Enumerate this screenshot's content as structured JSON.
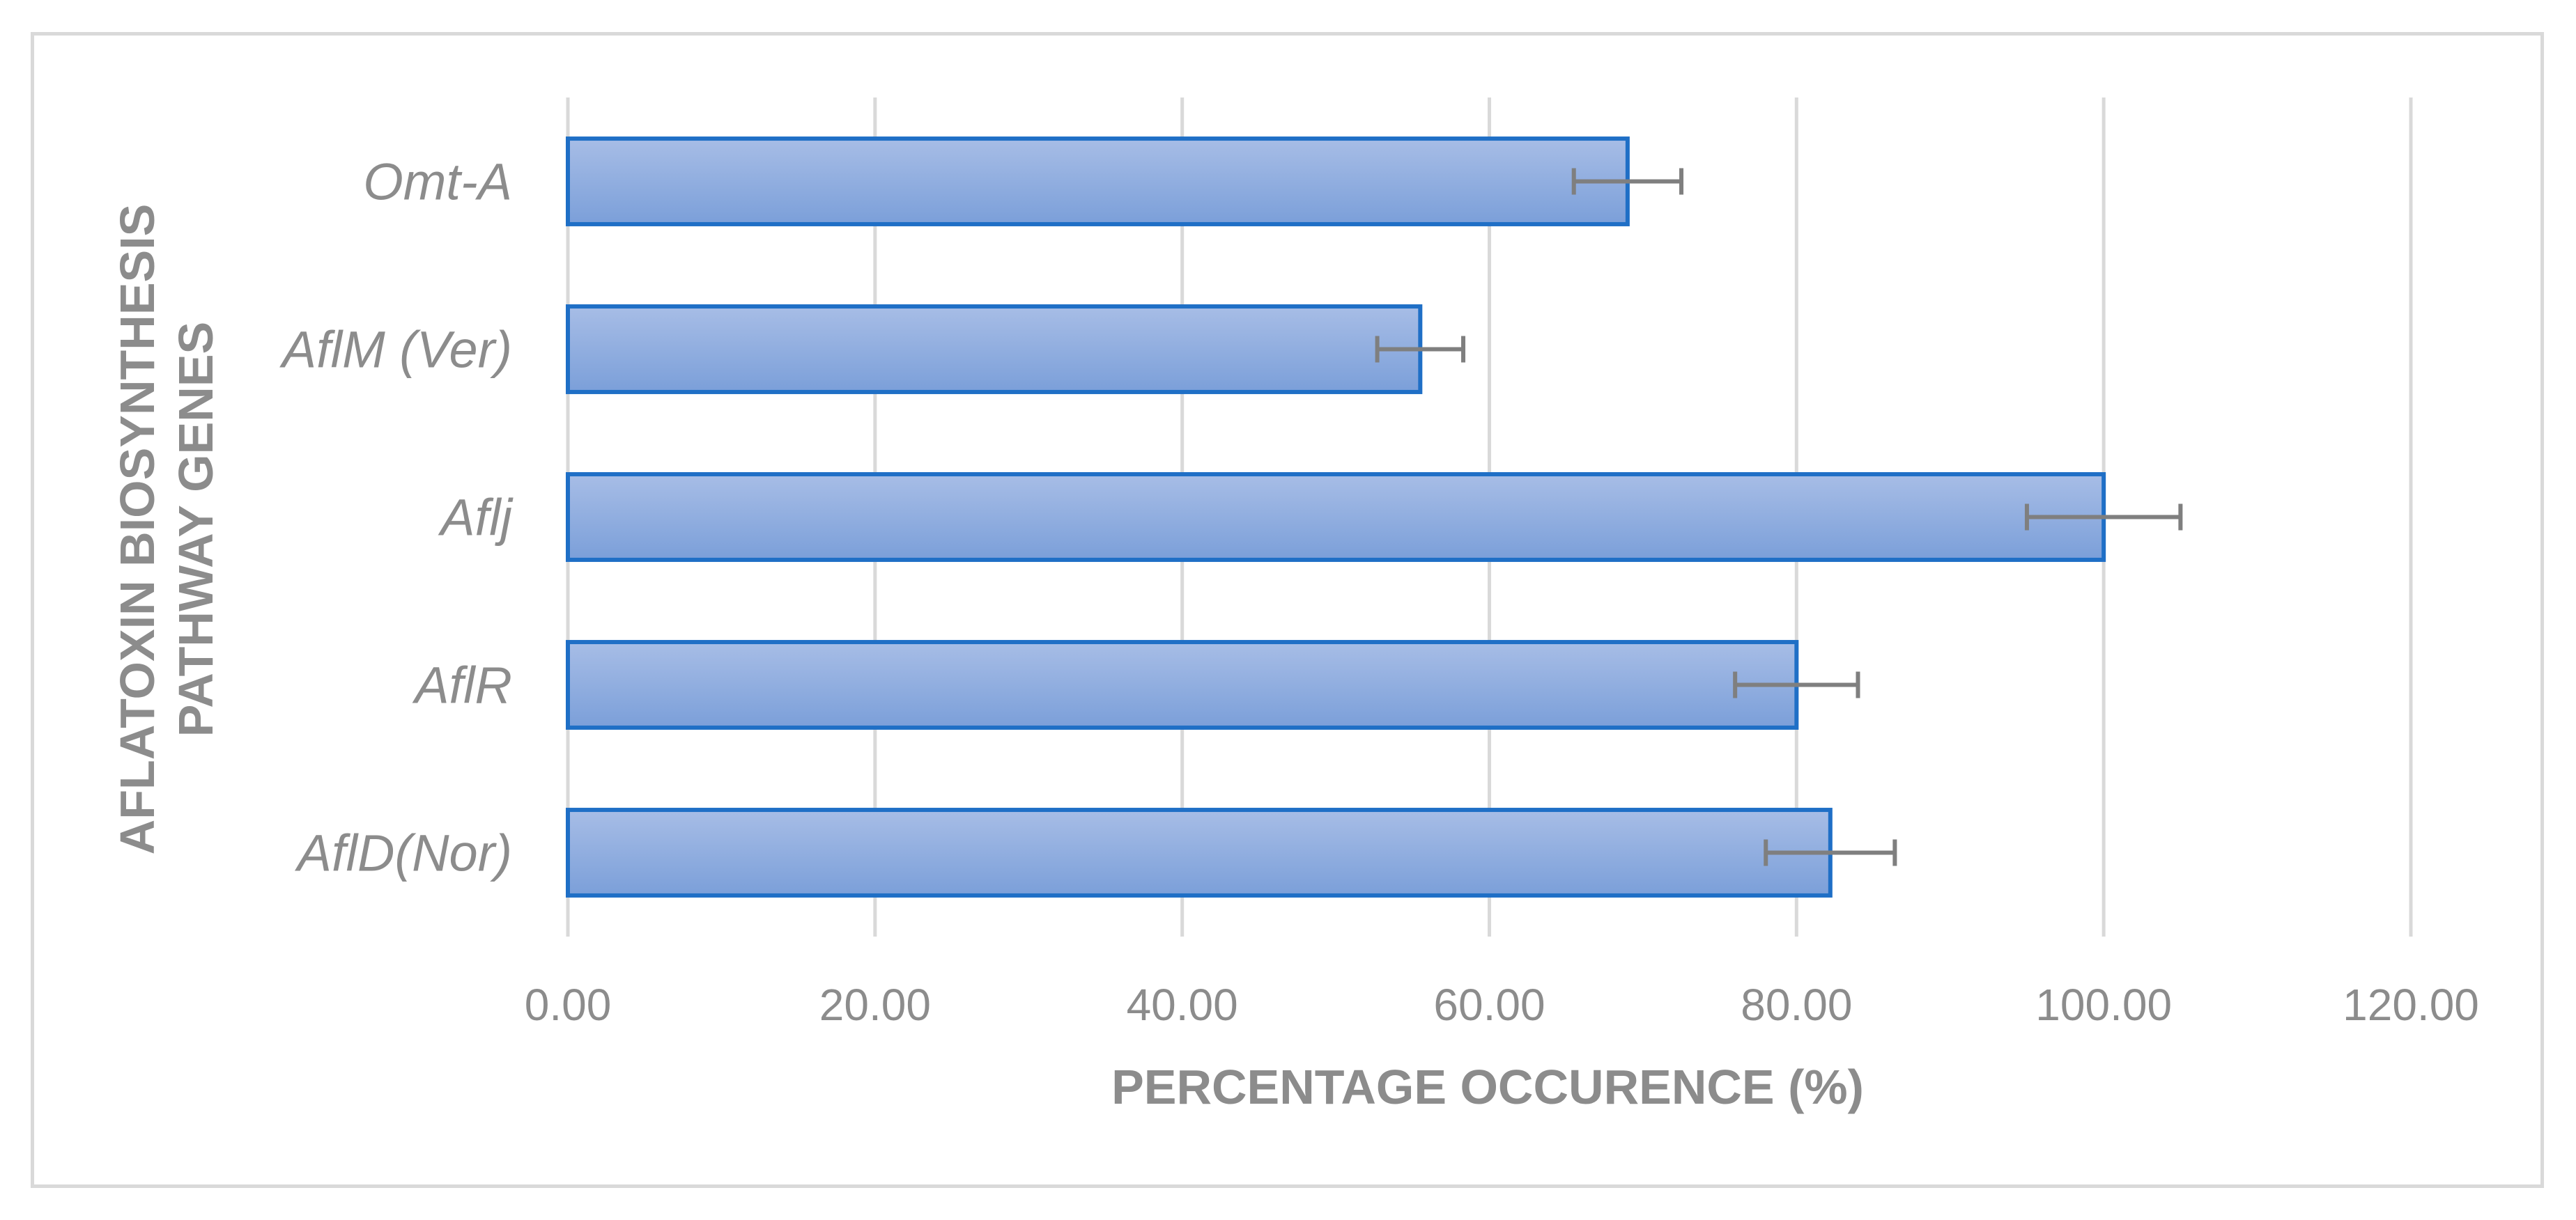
{
  "chart_data": {
    "type": "bar",
    "orientation": "horizontal",
    "categories": [
      "Omt-A",
      "AflM (Ver)",
      "Aflj",
      "AflR",
      "AflD(Nor)"
    ],
    "series": [
      {
        "values": [
          69.0,
          55.5,
          100.0,
          80.0,
          82.2
        ],
        "error": [
          3.5,
          2.8,
          5.0,
          4.0,
          4.2
        ]
      }
    ],
    "xlabel": "PERCENTAGE OCCURENCE (%)",
    "ylabel_lines": [
      "AFLATOXIN BIOSYNTHESIS",
      "PATHWAY GENES"
    ],
    "xlim": [
      0,
      120
    ],
    "xticks": [
      "0.00",
      "20.00",
      "40.00",
      "60.00",
      "80.00",
      "100.00",
      "120.00"
    ],
    "grid": "vertical",
    "legend": "none",
    "colors": {
      "bar_fill_top": "#a7bde6",
      "bar_fill_bottom": "#7b9fd9",
      "bar_stroke": "#1f6fc6",
      "error_bar": "#7f7f7f",
      "grid": "#d9d9d9",
      "text": "#8c8c8c"
    }
  }
}
